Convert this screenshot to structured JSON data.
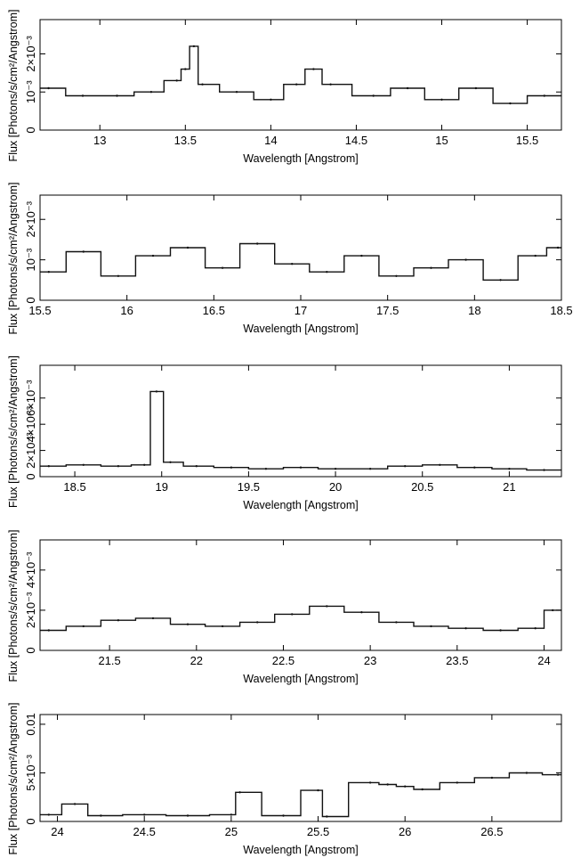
{
  "chart_data": [
    {
      "type": "line",
      "xlabel": "Wavelength [Angstrom]",
      "ylabel": "Flux [Photons/s/cm²/Angstrom]",
      "xlim": [
        12.65,
        15.7
      ],
      "ylim": [
        0,
        0.0029
      ],
      "xticks": [
        {
          "v": 13,
          "label": "13"
        },
        {
          "v": 13.5,
          "label": "13.5"
        },
        {
          "v": 14,
          "label": "14"
        },
        {
          "v": 14.5,
          "label": "14.5"
        },
        {
          "v": 15,
          "label": "15"
        },
        {
          "v": 15.5,
          "label": "15.5"
        }
      ],
      "yticks": [
        {
          "v": 0,
          "label": "0"
        },
        {
          "v": 0.001,
          "label": "10⁻³"
        },
        {
          "v": 0.002,
          "label": "2×10⁻³"
        }
      ],
      "series": [
        {
          "x": [
            12.7,
            12.9,
            13.1,
            13.3,
            13.45,
            13.5,
            13.55,
            13.6,
            13.8,
            14.0,
            14.15,
            14.25,
            14.35,
            14.6,
            14.8,
            15.0,
            15.2,
            15.4,
            15.6
          ],
          "y": [
            0.0011,
            0.0009,
            0.0009,
            0.001,
            0.0013,
            0.0016,
            0.0022,
            0.0012,
            0.001,
            0.0008,
            0.0012,
            0.0016,
            0.0012,
            0.0009,
            0.0011,
            0.0008,
            0.0011,
            0.0007,
            0.0009
          ]
        }
      ]
    },
    {
      "type": "line",
      "xlabel": "Wavelength [Angstrom]",
      "ylabel": "Flux [Photons/s/cm²/Angstrom]",
      "xlim": [
        15.5,
        18.5
      ],
      "ylim": [
        0,
        0.0026
      ],
      "xticks": [
        {
          "v": 15.5,
          "label": "15.5"
        },
        {
          "v": 16,
          "label": "16"
        },
        {
          "v": 16.5,
          "label": "16.5"
        },
        {
          "v": 17,
          "label": "17"
        },
        {
          "v": 17.5,
          "label": "17.5"
        },
        {
          "v": 18,
          "label": "18"
        },
        {
          "v": 18.5,
          "label": "18.5"
        }
      ],
      "yticks": [
        {
          "v": 0,
          "label": "0"
        },
        {
          "v": 0.001,
          "label": "10⁻³"
        },
        {
          "v": 0.002,
          "label": "2×10⁻³"
        }
      ],
      "series": [
        {
          "x": [
            15.55,
            15.75,
            15.95,
            16.15,
            16.35,
            16.55,
            16.75,
            16.95,
            17.15,
            17.35,
            17.55,
            17.75,
            17.95,
            18.15,
            18.35,
            18.48
          ],
          "y": [
            0.0007,
            0.0012,
            0.0006,
            0.0011,
            0.0013,
            0.0008,
            0.0014,
            0.0009,
            0.0007,
            0.0011,
            0.0006,
            0.0008,
            0.001,
            0.0005,
            0.0011,
            0.0013
          ]
        }
      ]
    },
    {
      "type": "line",
      "xlabel": "Wavelength [Angstrom]",
      "ylabel": "Flux [Photons/s/cm²/Angstrom]",
      "xlim": [
        18.3,
        21.3
      ],
      "ylim": [
        0,
        0.0085
      ],
      "xticks": [
        {
          "v": 18.5,
          "label": "18.5"
        },
        {
          "v": 19,
          "label": "19"
        },
        {
          "v": 19.5,
          "label": "19.5"
        },
        {
          "v": 20,
          "label": "20"
        },
        {
          "v": 20.5,
          "label": "20.5"
        },
        {
          "v": 21,
          "label": "21"
        }
      ],
      "yticks": [
        {
          "v": 0,
          "label": "0"
        },
        {
          "v": 0.002,
          "label": "2×10⁻³"
        },
        {
          "v": 0.004,
          "label": "4×10⁻³"
        },
        {
          "v": 0.006,
          "label": "6×10⁻³"
        }
      ],
      "series": [
        {
          "x": [
            18.35,
            18.55,
            18.75,
            18.9,
            18.97,
            19.05,
            19.2,
            19.4,
            19.6,
            19.8,
            20.0,
            20.2,
            20.4,
            20.6,
            20.8,
            21.0,
            21.2
          ],
          "y": [
            0.0008,
            0.0009,
            0.0008,
            0.0009,
            0.0065,
            0.0011,
            0.0008,
            0.0007,
            0.0006,
            0.0007,
            0.0006,
            0.0006,
            0.0008,
            0.0009,
            0.0007,
            0.0006,
            0.0005
          ]
        }
      ]
    },
    {
      "type": "line",
      "xlabel": "Wavelength [Angstrom]",
      "ylabel": "Flux [Photons/s/cm²/Angstrom]",
      "xlim": [
        21.1,
        24.1
      ],
      "ylim": [
        0,
        0.0055
      ],
      "xticks": [
        {
          "v": 21.5,
          "label": "21.5"
        },
        {
          "v": 22,
          "label": "22"
        },
        {
          "v": 22.5,
          "label": "22.5"
        },
        {
          "v": 23,
          "label": "23"
        },
        {
          "v": 23.5,
          "label": "23.5"
        },
        {
          "v": 24,
          "label": "24"
        }
      ],
      "yticks": [
        {
          "v": 0,
          "label": "0"
        },
        {
          "v": 0.002,
          "label": "2×10⁻³"
        },
        {
          "v": 0.004,
          "label": "4×10⁻³"
        }
      ],
      "series": [
        {
          "x": [
            21.15,
            21.35,
            21.55,
            21.75,
            21.95,
            22.15,
            22.35,
            22.55,
            22.75,
            22.95,
            23.15,
            23.35,
            23.55,
            23.75,
            23.95,
            24.05
          ],
          "y": [
            0.001,
            0.0012,
            0.0015,
            0.0016,
            0.0013,
            0.0012,
            0.0014,
            0.0018,
            0.0022,
            0.0019,
            0.0014,
            0.0012,
            0.0011,
            0.001,
            0.0011,
            0.002
          ]
        }
      ]
    },
    {
      "type": "line",
      "xlabel": "Wavelength [Angstrom]",
      "ylabel": "Flux [Photons/s/cm²/Angstrom]",
      "xlim": [
        23.9,
        26.9
      ],
      "ylim": [
        0,
        0.011
      ],
      "xticks": [
        {
          "v": 24,
          "label": "24"
        },
        {
          "v": 24.5,
          "label": "24.5"
        },
        {
          "v": 25,
          "label": "25"
        },
        {
          "v": 25.5,
          "label": "25.5"
        },
        {
          "v": 26,
          "label": "26"
        },
        {
          "v": 26.5,
          "label": "26.5"
        }
      ],
      "yticks": [
        {
          "v": 0,
          "label": "0"
        },
        {
          "v": 0.005,
          "label": "5×10⁻³"
        },
        {
          "v": 0.01,
          "label": "0.01"
        }
      ],
      "series": [
        {
          "x": [
            23.95,
            24.1,
            24.25,
            24.5,
            24.75,
            25.0,
            25.05,
            25.3,
            25.5,
            25.55,
            25.8,
            25.9,
            26.0,
            26.1,
            26.3,
            26.5,
            26.7,
            26.88
          ],
          "y": [
            0.0007,
            0.0018,
            0.0006,
            0.0007,
            0.0006,
            0.0007,
            0.003,
            0.0006,
            0.0032,
            0.0005,
            0.004,
            0.0038,
            0.0036,
            0.0033,
            0.004,
            0.0045,
            0.005,
            0.0048
          ]
        }
      ]
    }
  ]
}
